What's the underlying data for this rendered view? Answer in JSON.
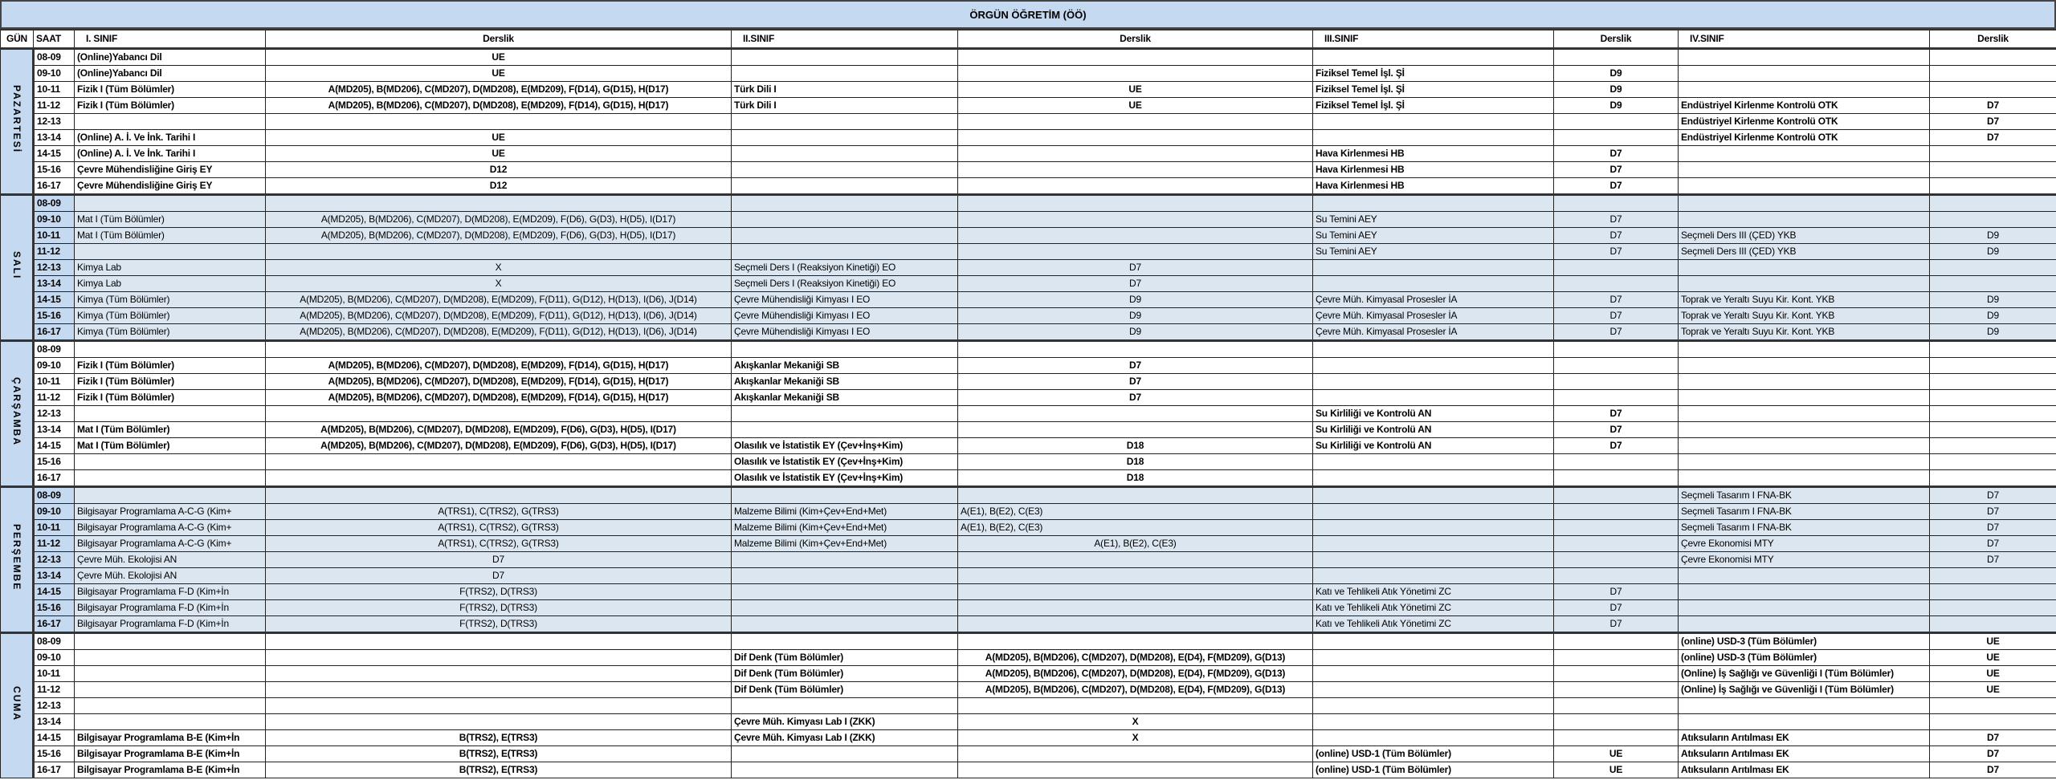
{
  "title": "ÖRGÜN ÖĞRETİM (ÖÖ)",
  "headers": {
    "day": "GÜN",
    "time": "SAAT",
    "c1": "I. SINIF",
    "r1": "Derslik",
    "c2": "II.SINIF",
    "r2": "Derslik",
    "c3": "III.SINIF",
    "r3": "Derslik",
    "c4": "IV.SINIF",
    "r4": "Derslik"
  },
  "colors": {
    "title_bg": "#c5d9f1",
    "shaded_row": "#dce6f1"
  },
  "days": [
    {
      "name": "PAZARTESİ",
      "shaded": false,
      "slots": [
        {
          "time": "08-09",
          "c1": "(Online)Yabancı Dil",
          "r1": "UE"
        },
        {
          "time": "09-10",
          "c1": "(Online)Yabancı Dil",
          "r1": "UE",
          "c3": "Fiziksel Temel İşl. Şİ",
          "r3": "D9"
        },
        {
          "time": "10-11",
          "c1": "Fizik I (Tüm Bölümler)",
          "r1": "A(MD205), B(MD206), C(MD207), D(MD208), E(MD209), F(D14), G(D15), H(D17)",
          "c2": "Türk Dili I",
          "r2": "UE",
          "c3": "Fiziksel Temel İşl. Şİ",
          "r3": "D9"
        },
        {
          "time": "11-12",
          "c1": "Fizik I (Tüm Bölümler)",
          "r1": "A(MD205), B(MD206), C(MD207), D(MD208), E(MD209), F(D14), G(D15), H(D17)",
          "c2": "Türk Dili I",
          "r2": "UE",
          "c3": "Fiziksel Temel İşl. Şİ",
          "r3": "D9",
          "c4": "Endüstriyel Kirlenme Kontrolü OTK",
          "r4": "D7"
        },
        {
          "time": "12-13",
          "c4": "Endüstriyel Kirlenme Kontrolü OTK",
          "r4": "D7"
        },
        {
          "time": "13-14",
          "c1": "(Online) A. İ. Ve İnk. Tarihi I",
          "r1": "UE",
          "c4": "Endüstriyel Kirlenme Kontrolü OTK",
          "r4": "D7"
        },
        {
          "time": "14-15",
          "c1": "(Online) A. İ. Ve İnk. Tarihi I",
          "r1": "UE",
          "c3": "Hava Kirlenmesi HB",
          "r3": "D7"
        },
        {
          "time": "15-16",
          "c1": "Çevre Mühendisliğine Giriş EY",
          "r1": "D12",
          "c3": "Hava Kirlenmesi HB",
          "r3": "D7"
        },
        {
          "time": "16-17",
          "c1": "Çevre Mühendisliğine Giriş EY",
          "r1": "D12",
          "c3": "Hava Kirlenmesi HB",
          "r3": "D7"
        }
      ]
    },
    {
      "name": "SALI",
      "shaded": true,
      "slots": [
        {
          "time": "08-09"
        },
        {
          "time": "09-10",
          "c1": "Mat I (Tüm Bölümler)",
          "r1": "A(MD205), B(MD206), C(MD207), D(MD208), E(MD209), F(D6), G(D3), H(D5), I(D17)",
          "c3": "Su Temini AEY",
          "r3": "D7"
        },
        {
          "time": "10-11",
          "c1": "Mat I (Tüm Bölümler)",
          "r1": "A(MD205), B(MD206), C(MD207), D(MD208), E(MD209), F(D6), G(D3), H(D5), I(D17)",
          "c3": "Su Temini AEY",
          "r3": "D7",
          "c4": "Seçmeli Ders III (ÇED) YKB",
          "r4": "D9"
        },
        {
          "time": "11-12",
          "c3": "Su Temini AEY",
          "r3": "D7",
          "c4": "Seçmeli Ders III (ÇED) YKB",
          "r4": "D9"
        },
        {
          "time": "12-13",
          "c1": "Kimya Lab",
          "r1": "X",
          "c2": "Seçmeli Ders I (Reaksiyon Kinetiği) EO",
          "r2": "D7"
        },
        {
          "time": "13-14",
          "c1": "Kimya Lab",
          "r1": "X",
          "c2": "Seçmeli Ders I (Reaksiyon Kinetiği) EO",
          "r2": "D7"
        },
        {
          "time": "14-15",
          "c1": "Kimya (Tüm Bölümler)",
          "r1": "A(MD205), B(MD206), C(MD207), D(MD208), E(MD209), F(D11), G(D12), H(D13), I(D6), J(D14)",
          "c2": "Çevre Mühendisliği Kimyası I EO",
          "r2": "D9",
          "c3": "Çevre Müh. Kimyasal Prosesler İA",
          "r3": "D7",
          "c4": "Toprak ve Yeraltı Suyu Kir. Kont. YKB",
          "r4": "D9"
        },
        {
          "time": "15-16",
          "c1": "Kimya (Tüm Bölümler)",
          "r1": "A(MD205), B(MD206), C(MD207), D(MD208), E(MD209), F(D11), G(D12), H(D13), I(D6), J(D14)",
          "c2": "Çevre Mühendisliği Kimyası I EO",
          "r2": "D9",
          "c3": "Çevre Müh. Kimyasal Prosesler İA",
          "r3": "D7",
          "c4": "Toprak ve Yeraltı Suyu Kir. Kont. YKB",
          "r4": "D9"
        },
        {
          "time": "16-17",
          "c1": "Kimya (Tüm Bölümler)",
          "r1": "A(MD205), B(MD206), C(MD207), D(MD208), E(MD209), F(D11), G(D12), H(D13), I(D6), J(D14)",
          "c2": "Çevre Mühendisliği Kimyası I EO",
          "r2": "D9",
          "c3": "Çevre Müh. Kimyasal Prosesler İA",
          "r3": "D7",
          "c4": "Toprak ve Yeraltı Suyu Kir. Kont. YKB",
          "r4": "D9"
        }
      ]
    },
    {
      "name": "ÇARŞAMBA",
      "shaded": false,
      "slots": [
        {
          "time": "08-09"
        },
        {
          "time": "09-10",
          "c1": "Fizik I (Tüm Bölümler)",
          "r1": "A(MD205), B(MD206), C(MD207), D(MD208), E(MD209), F(D14), G(D15), H(D17)",
          "c2": "Akışkanlar Mekaniği SB",
          "r2": "D7"
        },
        {
          "time": "10-11",
          "c1": "Fizik I (Tüm Bölümler)",
          "r1": "A(MD205), B(MD206), C(MD207), D(MD208), E(MD209), F(D14), G(D15), H(D17)",
          "c2": "Akışkanlar Mekaniği SB",
          "r2": "D7"
        },
        {
          "time": "11-12",
          "c1": "Fizik I (Tüm Bölümler)",
          "r1": "A(MD205), B(MD206), C(MD207), D(MD208), E(MD209), F(D14), G(D15), H(D17)",
          "c2": "Akışkanlar Mekaniği SB",
          "r2": "D7"
        },
        {
          "time": "12-13",
          "c3": "Su Kirliliği ve Kontrolü AN",
          "r3": "D7"
        },
        {
          "time": "13-14",
          "c1": "Mat I (Tüm Bölümler)",
          "r1": "A(MD205), B(MD206), C(MD207), D(MD208), E(MD209), F(D6), G(D3), H(D5), I(D17)",
          "c3": "Su Kirliliği ve Kontrolü AN",
          "r3": "D7"
        },
        {
          "time": "14-15",
          "c1": "Mat I (Tüm Bölümler)",
          "r1": "A(MD205), B(MD206), C(MD207), D(MD208), E(MD209), F(D6), G(D3), H(D5), I(D17)",
          "c2": "Olasılık ve İstatistik EY (Çev+İnş+Kim)",
          "r2": "D18",
          "c3": "Su Kirliliği ve Kontrolü AN",
          "r3": "D7"
        },
        {
          "time": "15-16",
          "c2": "Olasılık ve İstatistik EY (Çev+İnş+Kim)",
          "r2": "D18"
        },
        {
          "time": "16-17",
          "c2": "Olasılık ve İstatistik EY (Çev+İnş+Kim)",
          "r2": "D18"
        }
      ]
    },
    {
      "name": "PERŞEMBE",
      "shaded": true,
      "slots": [
        {
          "time": "08-09",
          "c4": "Seçmeli Tasarım I FNA-BK",
          "r4": "D7"
        },
        {
          "time": "09-10",
          "c1": "Bilgisayar Programlama A-C-G (Kim+",
          "r1": "A(TRS1), C(TRS2), G(TRS3)",
          "c2": "Malzeme Bilimi (Kim+Çev+End+Met)",
          "r2": "A(E1), B(E2), C(E3)",
          "r2_left": true,
          "c4": "Seçmeli Tasarım I FNA-BK",
          "r4": "D7"
        },
        {
          "time": "10-11",
          "c1": "Bilgisayar Programlama A-C-G (Kim+",
          "r1": "A(TRS1), C(TRS2), G(TRS3)",
          "c2": "Malzeme Bilimi (Kim+Çev+End+Met)",
          "r2": "A(E1), B(E2), C(E3)",
          "r2_left": true,
          "c4": "Seçmeli Tasarım I FNA-BK",
          "r4": "D7"
        },
        {
          "time": "11-12",
          "c1": "Bilgisayar Programlama A-C-G (Kim+",
          "r1": "A(TRS1), C(TRS2), G(TRS3)",
          "c2": "Malzeme Bilimi (Kim+Çev+End+Met)",
          "r2": "A(E1), B(E2), C(E3)",
          "c4": "Çevre Ekonomisi MTY",
          "r4": "D7"
        },
        {
          "time": "12-13",
          "c1": "Çevre Müh. Ekolojisi AN",
          "r1": "D7",
          "c4": "Çevre Ekonomisi MTY",
          "r4": "D7"
        },
        {
          "time": "13-14",
          "c1": "Çevre Müh. Ekolojisi AN",
          "r1": "D7"
        },
        {
          "time": "14-15",
          "c1": "Bilgisayar Programlama F-D (Kim+İn",
          "r1": "F(TRS2), D(TRS3)",
          "c3": "Katı ve Tehlikeli Atık Yönetimi ZC",
          "r3": "D7"
        },
        {
          "time": "15-16",
          "c1": "Bilgisayar Programlama F-D (Kim+İn",
          "r1": "F(TRS2), D(TRS3)",
          "c3": "Katı ve Tehlikeli Atık Yönetimi ZC",
          "r3": "D7"
        },
        {
          "time": "16-17",
          "c1": "Bilgisayar Programlama F-D (Kim+İn",
          "r1": "F(TRS2), D(TRS3)",
          "c3": "Katı ve Tehlikeli Atık Yönetimi ZC",
          "r3": "D7"
        }
      ]
    },
    {
      "name": "CUMA",
      "shaded": false,
      "slots": [
        {
          "time": "08-09",
          "c4": "(online) USD-3 (Tüm Bölümler)",
          "r4": "UE"
        },
        {
          "time": "09-10",
          "c2": "Dif Denk (Tüm Bölümler)",
          "r2": "A(MD205), B(MD206), C(MD207), D(MD208), E(D4), F(MD209), G(D13)",
          "c4": "(online) USD-3 (Tüm Bölümler)",
          "r4": "UE"
        },
        {
          "time": "10-11",
          "c2": "Dif Denk (Tüm Bölümler)",
          "r2": "A(MD205), B(MD206), C(MD207), D(MD208), E(D4), F(MD209), G(D13)",
          "c4": "(Online) İş Sağlığı ve Güvenliği I (Tüm Bölümler)",
          "r4": "UE"
        },
        {
          "time": "11-12",
          "c2": "Dif Denk (Tüm Bölümler)",
          "r2": "A(MD205), B(MD206), C(MD207), D(MD208), E(D4), F(MD209), G(D13)",
          "c4": "(Online) İş Sağlığı ve Güvenliği I (Tüm Bölümler)",
          "r4": "UE"
        },
        {
          "time": "12-13"
        },
        {
          "time": "13-14",
          "c2": "Çevre Müh. Kimyası Lab I (ZKK)",
          "r2": "X"
        },
        {
          "time": "14-15",
          "c1": "Bilgisayar Programlama B-E (Kim+İn",
          "r1": "B(TRS2), E(TRS3)",
          "c2": "Çevre Müh. Kimyası Lab I (ZKK)",
          "r2": "X",
          "c4": "Atıksuların Arıtılması EK",
          "r4": "D7"
        },
        {
          "time": "15-16",
          "c1": "Bilgisayar Programlama B-E (Kim+İn",
          "r1": "B(TRS2), E(TRS3)",
          "c3": "(online) USD-1 (Tüm Bölümler)",
          "r3": "UE",
          "c4": "Atıksuların Arıtılması EK",
          "r4": "D7"
        },
        {
          "time": "16-17",
          "c1": "Bilgisayar Programlama B-E (Kim+İn",
          "r1": "B(TRS2), E(TRS3)",
          "c3": "(online) USD-1 (Tüm Bölümler)",
          "r3": "UE",
          "c4": "Atıksuların Arıtılması EK",
          "r4": "D7"
        }
      ]
    }
  ]
}
